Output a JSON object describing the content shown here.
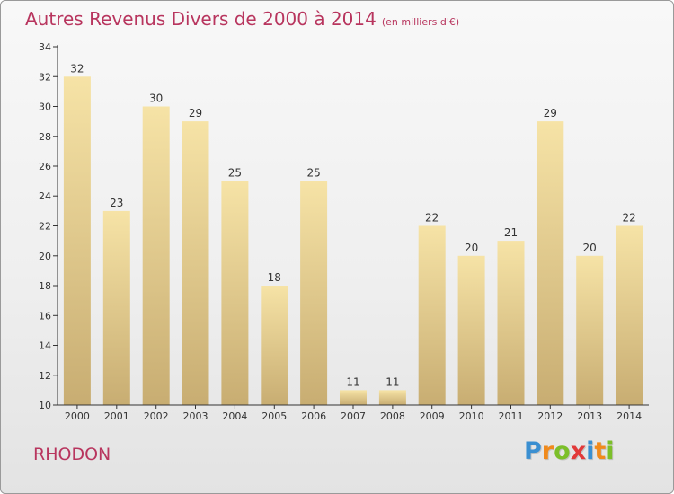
{
  "chart_data": {
    "type": "bar",
    "title": "Autres Revenus Divers de 2000 à 2014",
    "subtitle": "(en milliers d'€)",
    "categories": [
      "2000",
      "2001",
      "2002",
      "2003",
      "2004",
      "2005",
      "2006",
      "2007",
      "2008",
      "2009",
      "2010",
      "2011",
      "2012",
      "2013",
      "2014"
    ],
    "values": [
      32,
      23,
      30,
      29,
      25,
      18,
      25,
      11,
      11,
      22,
      20,
      21,
      29,
      20,
      22
    ],
    "ylim": [
      10,
      34
    ],
    "yticks": [
      10,
      12,
      14,
      16,
      18,
      20,
      22,
      24,
      26,
      28,
      30,
      32,
      34
    ],
    "xlabel": "",
    "ylabel": "",
    "grid": false,
    "colors": {
      "bar_light": "#f6e3a6",
      "bar_dark": "#c8ad72",
      "axis": "#333333",
      "text": "#333333"
    }
  },
  "footer": {
    "town": "RHODON",
    "logo_letters": [
      {
        "ch": "P",
        "color": "#3a8fd1"
      },
      {
        "ch": "r",
        "color": "#f08a1c"
      },
      {
        "ch": "o",
        "color": "#7cbf2a"
      },
      {
        "ch": "x",
        "color": "#e23a3a"
      },
      {
        "ch": "i",
        "color": "#3a8fd1"
      },
      {
        "ch": "t",
        "color": "#f08a1c"
      },
      {
        "ch": "i",
        "color": "#7cbf2a"
      }
    ]
  }
}
